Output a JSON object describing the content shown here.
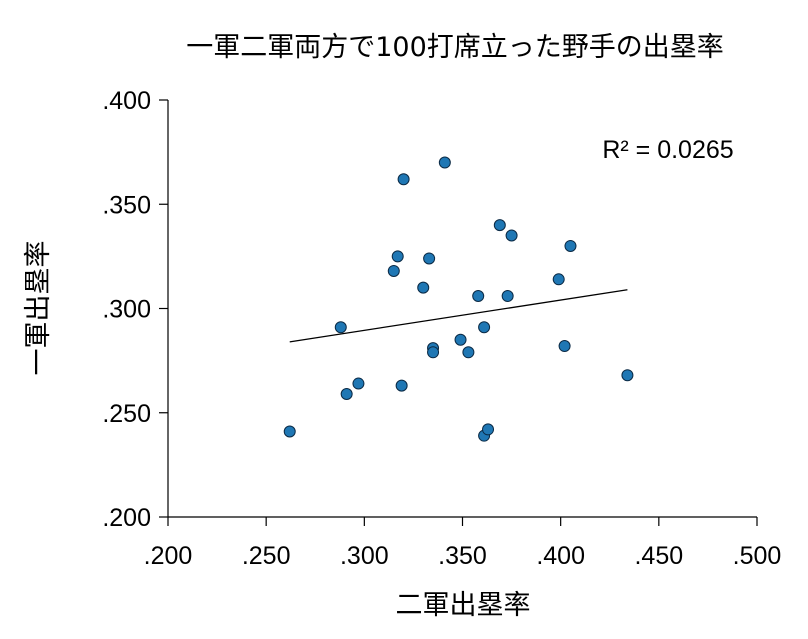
{
  "chart_data": {
    "type": "scatter",
    "title": "一軍二軍両方で100打席立った野手の出塁率",
    "xlabel": "二軍出塁率",
    "ylabel": "一軍出塁率",
    "xlim": [
      0.2,
      0.5
    ],
    "ylim": [
      0.2,
      0.4
    ],
    "xticks": [
      ".200",
      ".250",
      ".300",
      ".350",
      ".400",
      ".450",
      ".500"
    ],
    "yticks": [
      ".200",
      ".250",
      ".300",
      ".350",
      ".400"
    ],
    "xtick_values": [
      0.2,
      0.25,
      0.3,
      0.35,
      0.4,
      0.45,
      0.5
    ],
    "ytick_values": [
      0.2,
      0.25,
      0.3,
      0.35,
      0.4
    ],
    "grid": false,
    "marker_color": "#1f77b4",
    "points": [
      {
        "x": 0.262,
        "y": 0.241
      },
      {
        "x": 0.288,
        "y": 0.291
      },
      {
        "x": 0.291,
        "y": 0.259
      },
      {
        "x": 0.297,
        "y": 0.264
      },
      {
        "x": 0.315,
        "y": 0.318
      },
      {
        "x": 0.317,
        "y": 0.325
      },
      {
        "x": 0.319,
        "y": 0.263
      },
      {
        "x": 0.32,
        "y": 0.362
      },
      {
        "x": 0.33,
        "y": 0.31
      },
      {
        "x": 0.333,
        "y": 0.324
      },
      {
        "x": 0.335,
        "y": 0.281
      },
      {
        "x": 0.335,
        "y": 0.279
      },
      {
        "x": 0.341,
        "y": 0.37
      },
      {
        "x": 0.349,
        "y": 0.285
      },
      {
        "x": 0.353,
        "y": 0.279
      },
      {
        "x": 0.358,
        "y": 0.306
      },
      {
        "x": 0.361,
        "y": 0.291
      },
      {
        "x": 0.361,
        "y": 0.239
      },
      {
        "x": 0.363,
        "y": 0.242
      },
      {
        "x": 0.369,
        "y": 0.34
      },
      {
        "x": 0.373,
        "y": 0.306
      },
      {
        "x": 0.375,
        "y": 0.335
      },
      {
        "x": 0.399,
        "y": 0.314
      },
      {
        "x": 0.402,
        "y": 0.282
      },
      {
        "x": 0.405,
        "y": 0.33
      },
      {
        "x": 0.434,
        "y": 0.268
      }
    ],
    "trendline": {
      "x": [
        0.262,
        0.434
      ],
      "y": [
        0.284,
        0.309
      ]
    },
    "annotation": "R² = 0.0265"
  }
}
